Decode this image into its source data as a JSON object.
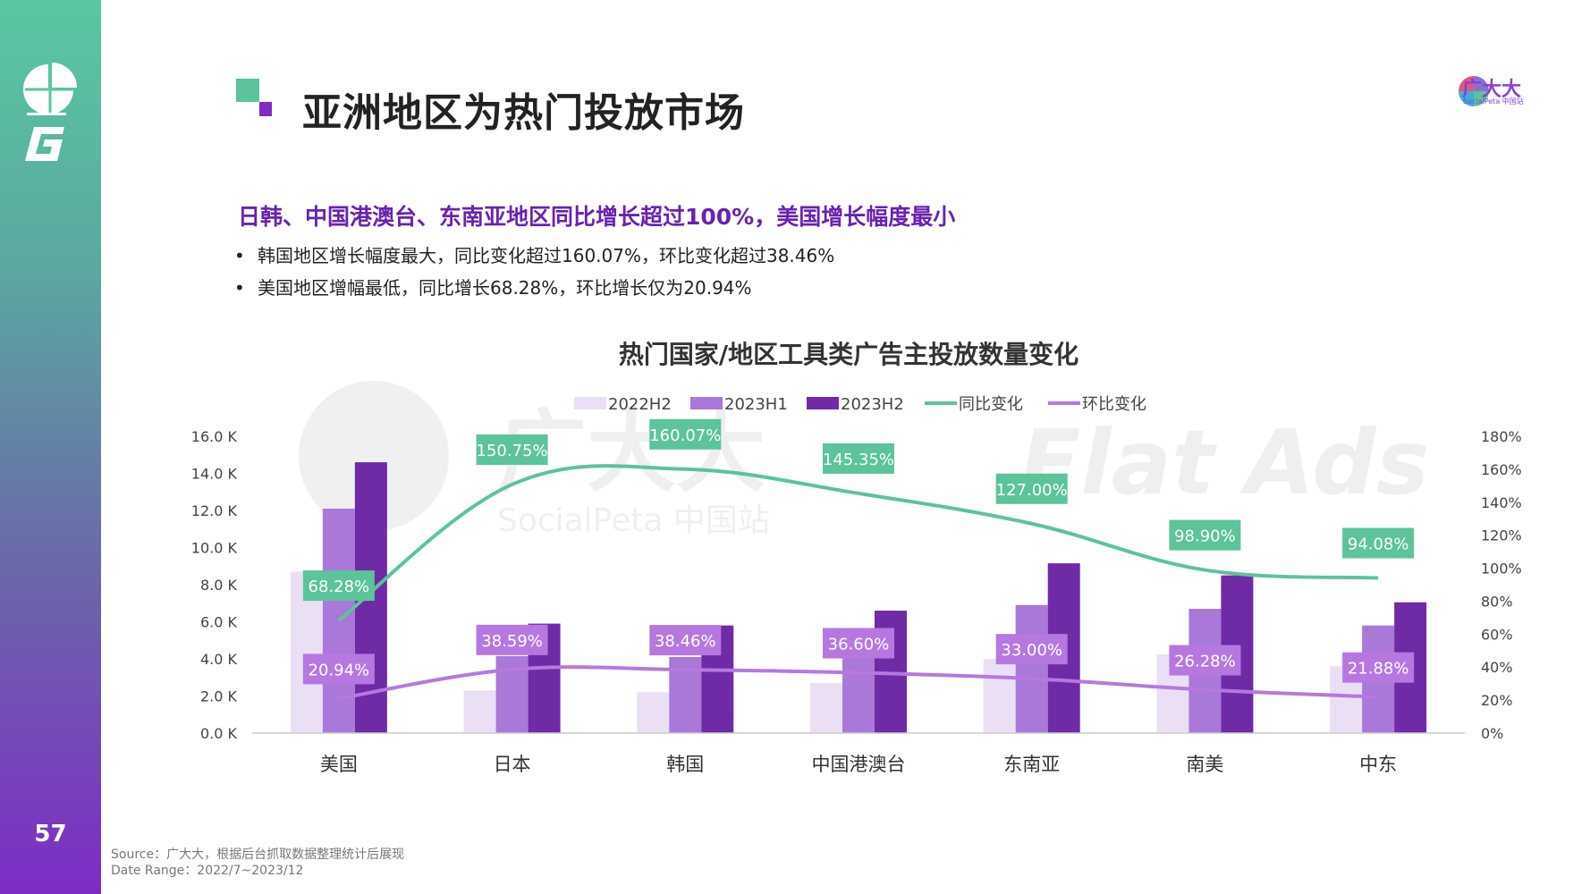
{
  "page": {
    "title": "亚洲地区为热门投放市场",
    "page_number": "57",
    "headline": "日韩、中国港澳台、东南亚地区同比增长超过100%，美国增长幅度最小",
    "bullets": [
      "韩国地区增长幅度最大，同比变化超过160.07%，环比变化超过38.46%",
      "美国地区增幅最低，同比增长68.28%，环比增长仅为20.94%"
    ],
    "bullet_symbol": "•",
    "brand": {
      "name": "广大大",
      "sub": "SocialPeta 中国站"
    },
    "watermark": {
      "cn": "广大大",
      "sub": "SocialPeta 中国站",
      "flat": "Flat Ads"
    },
    "source": "Source：广大大，根据后台抓取数据整理统计后展现",
    "date_range": "Date Range：2022/7~2023/12"
  },
  "colors": {
    "bar_2022H2": "#eadff5",
    "bar_2023H1": "#a978d8",
    "bar_2023H2": "#6f2aa6",
    "yoy_line": "#5cc39a",
    "mom_line": "#b678e0",
    "accent_title": "#6a22b0"
  },
  "chart_data": {
    "type": "bar",
    "title": "热门国家/地区工具类广告主投放数量变化",
    "categories": [
      "美国",
      "日本",
      "韩国",
      "中国港澳台",
      "东南亚",
      "南美",
      "中东"
    ],
    "series": [
      {
        "name": "2022H2",
        "type": "bar",
        "values": [
          8700,
          2300,
          2200,
          2700,
          4000,
          4250,
          3600
        ]
      },
      {
        "name": "2023H1",
        "type": "bar",
        "values": [
          12100,
          4150,
          4100,
          4350,
          6900,
          6700,
          5800
        ]
      },
      {
        "name": "2023H2",
        "type": "bar",
        "values": [
          14600,
          5900,
          5800,
          6600,
          9150,
          8500,
          7050
        ]
      },
      {
        "name": "同比变化",
        "type": "line",
        "axis": "right",
        "values": [
          68.28,
          150.75,
          160.07,
          145.35,
          127.0,
          98.9,
          94.08
        ],
        "labels": [
          "68.28%",
          "150.75%",
          "160.07%",
          "145.35%",
          "127.00%",
          "98.90%",
          "94.08%"
        ]
      },
      {
        "name": "环比变化",
        "type": "line",
        "axis": "right",
        "values": [
          20.94,
          38.59,
          38.46,
          36.6,
          33.0,
          26.28,
          21.88
        ],
        "labels": [
          "20.94%",
          "38.59%",
          "38.46%",
          "36.60%",
          "33.00%",
          "26.28%",
          "21.88%"
        ]
      }
    ],
    "y_left": {
      "ylim": [
        0,
        16000
      ],
      "ticks": [
        "0.0 K",
        "2.0 K",
        "4.0 K",
        "6.0 K",
        "8.0 K",
        "10.0 K",
        "12.0 K",
        "14.0 K",
        "16.0 K"
      ]
    },
    "y_right": {
      "ylim": [
        0,
        180
      ],
      "ticks": [
        "0%",
        "20%",
        "40%",
        "60%",
        "80%",
        "100%",
        "120%",
        "140%",
        "160%",
        "180%"
      ]
    },
    "legend_position": "top",
    "grid": false
  }
}
